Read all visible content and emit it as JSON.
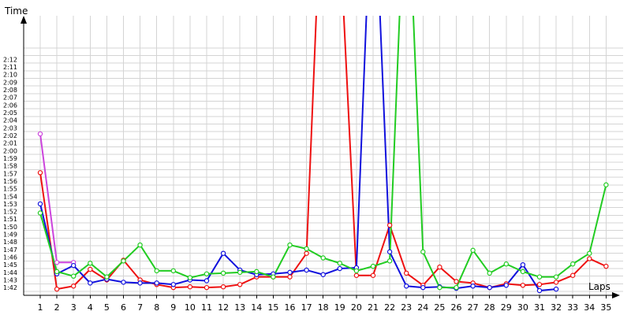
{
  "chart_data": {
    "type": "line",
    "ylabel": "Time",
    "xlabel": "Laps",
    "x": [
      1,
      2,
      3,
      4,
      5,
      6,
      7,
      8,
      9,
      10,
      11,
      12,
      13,
      14,
      15,
      16,
      17,
      18,
      19,
      20,
      21,
      22,
      23,
      24,
      25,
      26,
      27,
      28,
      29,
      30,
      31,
      32,
      33,
      34,
      35
    ],
    "x_tick_labels": [
      "1",
      "2",
      "3",
      "4",
      "5",
      "6",
      "7",
      "8",
      "9",
      "10",
      "11",
      "12",
      "13",
      "14",
      "15",
      "16",
      "17",
      "18",
      "19",
      "20",
      "21",
      "22",
      "23",
      "24",
      "25",
      "26",
      "27",
      "28",
      "29",
      "30",
      "31",
      "32",
      "33",
      "34",
      "35"
    ],
    "y_tick_labels": [
      "1:42",
      "1:43",
      "1:44",
      "1:45",
      "1:46",
      "1:47",
      "1:48",
      "1:49",
      "1:50",
      "1:51",
      "1:52",
      "1:53",
      "1:54",
      "1:55",
      "1:56",
      "1:57",
      "1:58",
      "1:59",
      "2:00",
      "2:01",
      "2:02",
      "2:03",
      "2:04",
      "2:05",
      "2:06",
      "2:07",
      "2:08",
      "2:09",
      "2:10",
      "2:11",
      "2:12"
    ],
    "ylim": [
      101,
      134
    ],
    "grid": true,
    "series": [
      {
        "color": "#cc44dd",
        "values": [
          122.2,
          105.3,
          105.3,
          null,
          null,
          null,
          null,
          null,
          null,
          null,
          null,
          null,
          null,
          null,
          null,
          null,
          null,
          null,
          null,
          null,
          null,
          null,
          null,
          null,
          null,
          null,
          null,
          null,
          null,
          null,
          null,
          null,
          null,
          null,
          null
        ]
      },
      {
        "color": "#ee1111",
        "values": [
          117.1,
          101.8,
          102.2,
          104.4,
          103.0,
          105.6,
          103.0,
          102.4,
          102.0,
          102.1,
          102.0,
          102.1,
          102.4,
          103.4,
          103.4,
          103.4,
          106.5,
          160,
          148.5,
          103.6,
          103.6,
          110.2,
          103.9,
          102.3,
          104.7,
          102.8,
          102.6,
          102.0,
          102.5,
          102.3,
          102.4,
          102.7,
          103.6,
          105.8,
          104.8
        ]
      },
      {
        "color": "#1111dd",
        "values": [
          113.0,
          103.8,
          104.9,
          102.6,
          103.1,
          102.7,
          102.6,
          102.6,
          102.4,
          103.0,
          102.9,
          106.5,
          104.3,
          103.7,
          103.8,
          104.0,
          104.3,
          103.7,
          104.5,
          104.6,
          160,
          106.7,
          102.2,
          102.0,
          102.1,
          101.9,
          102.2,
          102.0,
          102.3,
          105.0,
          101.6,
          101.8,
          null,
          null,
          null
        ]
      },
      {
        "color": "#22cc22",
        "values": [
          111.8,
          104.1,
          103.5,
          105.2,
          103.4,
          105.5,
          107.6,
          104.2,
          104.2,
          103.3,
          103.8,
          103.9,
          104.0,
          104.1,
          103.4,
          107.6,
          107.1,
          105.9,
          105.2,
          104.2,
          104.8,
          105.5,
          160,
          106.7,
          102.0,
          102.0,
          106.9,
          103.9,
          105.1,
          104.1,
          103.4,
          103.4,
          105.1,
          106.5,
          115.5
        ]
      }
    ]
  }
}
